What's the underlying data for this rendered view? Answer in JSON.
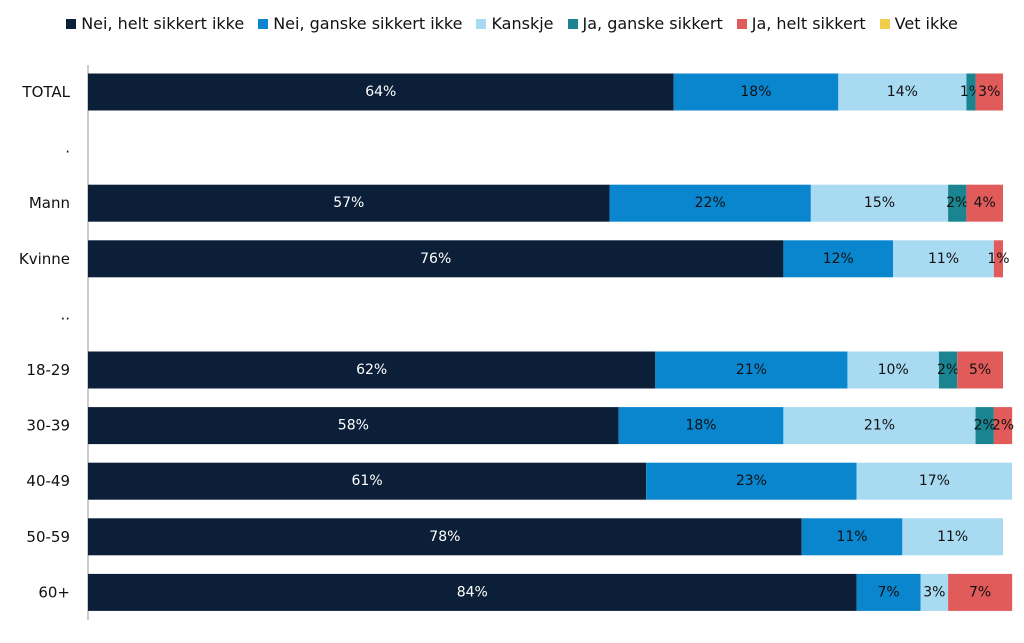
{
  "chart_data": {
    "type": "bar",
    "orientation": "horizontal",
    "stacked": true,
    "unit": "%",
    "xlim": [
      0,
      100
    ],
    "grid": false,
    "legend_position": "top",
    "categories": [
      "TOTAL",
      ".",
      "Mann",
      "Kvinne",
      "..",
      "18-29",
      "30-39",
      "40-49",
      "50-59",
      "60+"
    ],
    "series": [
      {
        "name": "Nei, helt sikkert ikke",
        "color": "#0c1f38",
        "label_color": "#ffffff",
        "values": [
          64,
          null,
          57,
          76,
          null,
          62,
          58,
          61,
          78,
          84
        ]
      },
      {
        "name": "Nei, ganske sikkert ikke",
        "color": "#0a86cf",
        "label_color": "#111111",
        "values": [
          18,
          null,
          22,
          12,
          null,
          21,
          18,
          23,
          11,
          7
        ]
      },
      {
        "name": "Kanskje",
        "color": "#a8daf2",
        "label_color": "#111111",
        "values": [
          14,
          null,
          15,
          11,
          null,
          10,
          21,
          17,
          11,
          3
        ]
      },
      {
        "name": "Ja, ganske sikkert",
        "color": "#1a8590",
        "label_color": "#111111",
        "values": [
          1,
          null,
          2,
          0,
          null,
          2,
          2,
          0,
          0,
          0
        ]
      },
      {
        "name": "Ja, helt sikkert",
        "color": "#e25b5b",
        "label_color": "#111111",
        "values": [
          3,
          null,
          4,
          1,
          null,
          5,
          2,
          0,
          0,
          7
        ]
      },
      {
        "name": "Vet ikke",
        "color": "#f2cc4a",
        "label_color": "#111111",
        "values": [
          0,
          null,
          0,
          0,
          null,
          0,
          0,
          0,
          0,
          0
        ]
      }
    ]
  }
}
